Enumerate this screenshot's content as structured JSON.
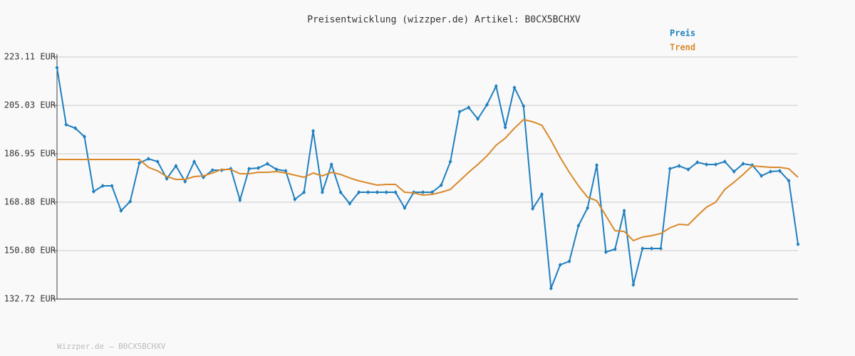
{
  "chart_data": {
    "type": "line",
    "title": "Preisentwicklung (wizzper.de) Artikel: B0CX5BCHXV",
    "footer": "Wizzper.de – B0CX5BCHXV",
    "categories": [
      null,
      null,
      null,
      null,
      null,
      null,
      null,
      null,
      null,
      null,
      null,
      null,
      null,
      null,
      null,
      null,
      null,
      null,
      null,
      null,
      null,
      null,
      null,
      null,
      null,
      null,
      null,
      null,
      null,
      null,
      null,
      null,
      null,
      null,
      null,
      null,
      null,
      null,
      null,
      null,
      null,
      null,
      null,
      null,
      null,
      null,
      null,
      null,
      null,
      null,
      null,
      null,
      null,
      null,
      null,
      null,
      null,
      null,
      null,
      null,
      null,
      null,
      null,
      null,
      null,
      null,
      null,
      null,
      null,
      null,
      null,
      null,
      null,
      null,
      null,
      null,
      null,
      null,
      null,
      null,
      null,
      null
    ],
    "ylim": [
      132.72,
      223.11
    ],
    "yticks": [
      {
        "value": 132.72,
        "label": "132.72 EUR"
      },
      {
        "value": 150.8,
        "label": "150.80 EUR"
      },
      {
        "value": 168.88,
        "label": "168.88 EUR"
      },
      {
        "value": 186.95,
        "label": "186.95 EUR"
      },
      {
        "value": 205.03,
        "label": "205.03 EUR"
      },
      {
        "value": 223.11,
        "label": "223.11 EUR"
      }
    ],
    "grid": true,
    "legend": "top-right",
    "series": [
      {
        "name": "Preis",
        "color": "#1f7fbf",
        "markers": true,
        "values": [
          219.12,
          197.85,
          196.52,
          193.33,
          172.86,
          174.99,
          174.99,
          165.69,
          169.14,
          183.5,
          185.09,
          184.03,
          177.65,
          182.43,
          176.59,
          184.03,
          178.18,
          180.84,
          180.84,
          181.37,
          169.67,
          181.37,
          181.64,
          183.23,
          181.11,
          180.57,
          169.94,
          172.6,
          195.46,
          172.6,
          182.97,
          172.6,
          168.34,
          172.6,
          172.6,
          172.6,
          172.6,
          172.6,
          166.75,
          172.6,
          172.6,
          172.6,
          175.26,
          184.03,
          202.64,
          204.23,
          199.98,
          205.3,
          212.21,
          196.79,
          211.68,
          204.77,
          166.48,
          171.8,
          136.71,
          145.48,
          146.81,
          160.1,
          166.75,
          182.7,
          150.27,
          151.33,
          165.69,
          138.04,
          151.6,
          151.6,
          151.6,
          181.37,
          182.43,
          181.11,
          183.76,
          182.97,
          182.97,
          184.03,
          180.31,
          183.23,
          182.7,
          178.71,
          180.31,
          180.57,
          176.85,
          153.19
        ]
      },
      {
        "name": "Trend",
        "color": "#d9892b",
        "markers": false,
        "values": [
          184.83,
          184.83,
          184.83,
          184.83,
          184.83,
          184.83,
          184.83,
          184.83,
          184.83,
          184.83,
          181.9,
          180.57,
          178.45,
          177.39,
          177.39,
          178.45,
          178.71,
          179.78,
          181.11,
          181.11,
          179.51,
          179.51,
          180.04,
          180.04,
          180.31,
          179.78,
          178.98,
          178.18,
          179.78,
          178.71,
          180.04,
          179.24,
          177.92,
          176.85,
          176.05,
          175.26,
          175.52,
          175.52,
          172.6,
          172.33,
          171.53,
          171.8,
          172.6,
          173.66,
          176.85,
          180.04,
          182.97,
          186.16,
          190.14,
          192.8,
          196.52,
          199.72,
          198.92,
          197.59,
          192.01,
          185.62,
          180.04,
          174.99,
          170.74,
          169.41,
          163.82,
          158.24,
          157.98,
          154.52,
          155.85,
          156.38,
          157.18,
          159.31,
          160.64,
          160.37,
          163.82,
          167.02,
          168.88,
          173.66,
          176.32,
          179.24,
          182.43,
          182.17,
          181.9,
          181.9,
          181.37,
          178.18
        ]
      }
    ]
  }
}
